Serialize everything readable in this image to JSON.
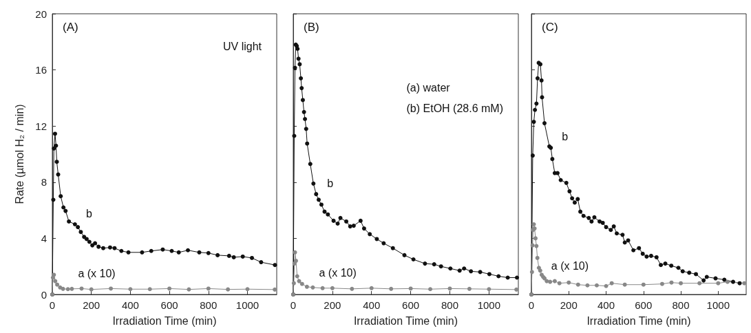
{
  "chart_data": [
    {
      "type": "line",
      "title": "(A)",
      "xlabel": "Irradiation Time (min)",
      "ylabel": "Rate (µmol H₂ / min)",
      "xlim": [
        0,
        1150
      ],
      "ylim": [
        0,
        20
      ],
      "xticks": [
        0,
        200,
        400,
        600,
        800,
        1000
      ],
      "yticks": [
        0,
        4,
        8,
        12,
        16,
        20
      ],
      "grid": false,
      "marker": "circle",
      "line_style": "solid",
      "annotations": [
        "UV light",
        "b",
        "a (x 10)"
      ],
      "series": [
        {
          "color": "#111111",
          "x": [
            0,
            5,
            8,
            14,
            19,
            23,
            30,
            43,
            57,
            68,
            85,
            116,
            131,
            146,
            163,
            176,
            190,
            205,
            219,
            237,
            261,
            296,
            319,
            354,
            390,
            460,
            507,
            566,
            612,
            648,
            695,
            753,
            800,
            847,
            906,
            930,
            976,
            1023,
            1070,
            1141
          ],
          "values": [
            0,
            6.75,
            10.4,
            11.45,
            10.6,
            9.45,
            8.55,
            7.0,
            6.2,
            5.95,
            5.2,
            5.0,
            4.8,
            4.45,
            4.1,
            3.95,
            3.75,
            3.5,
            3.65,
            3.4,
            3.3,
            3.35,
            3.3,
            3.1,
            3.0,
            3.0,
            3.1,
            3.2,
            3.1,
            3.0,
            3.15,
            3.0,
            2.95,
            2.8,
            2.75,
            2.65,
            2.7,
            2.6,
            2.3,
            2.1
          ]
        },
        {
          "color": "#888888",
          "x": [
            0,
            3,
            8,
            15,
            25,
            40,
            55,
            80,
            100,
            150,
            200,
            300,
            400,
            500,
            600,
            700,
            800,
            900,
            1000,
            1140
          ],
          "values": [
            0,
            1.2,
            1.4,
            0.95,
            0.7,
            0.5,
            0.4,
            0.38,
            0.4,
            0.42,
            0.36,
            0.42,
            0.38,
            0.38,
            0.42,
            0.36,
            0.42,
            0.36,
            0.38,
            0.35
          ]
        }
      ]
    },
    {
      "type": "line",
      "title": "(B)",
      "xlabel": "Irradiation Time (min)",
      "xlim": [
        0,
        1150
      ],
      "ylim": [
        0,
        20
      ],
      "xticks": [
        0,
        200,
        400,
        600,
        800,
        1000
      ],
      "yticks": [
        0,
        4,
        8,
        12,
        16,
        20
      ],
      "tick_labels": "x",
      "grid": false,
      "marker": "circle",
      "line_style": "solid",
      "annotations": [
        "(a) water",
        "(b) EtOH (28.6 mM)",
        "b",
        "a (x 10)"
      ],
      "series": [
        {
          "color": "#111111",
          "x": [
            0,
            5,
            9,
            13,
            18,
            22,
            27,
            33,
            39,
            43,
            49,
            55,
            60,
            66,
            71,
            87,
            103,
            117,
            130,
            144,
            160,
            177,
            206,
            227,
            241,
            271,
            291,
            309,
            344,
            362,
            391,
            427,
            462,
            509,
            568,
            614,
            673,
            720,
            755,
            803,
            850,
            873,
            908,
            955,
            1002,
            1049,
            1096,
            1143
          ],
          "values": [
            0,
            11.3,
            16.15,
            17.8,
            17.7,
            17.5,
            16.8,
            16.4,
            15.4,
            14.7,
            13.85,
            13.0,
            12.5,
            11.8,
            10.75,
            9.3,
            7.9,
            7.15,
            6.75,
            6.4,
            5.9,
            5.7,
            5.25,
            5.05,
            5.45,
            5.2,
            4.85,
            4.9,
            5.25,
            4.7,
            4.3,
            3.95,
            3.65,
            3.3,
            2.8,
            2.5,
            2.2,
            2.15,
            2.0,
            1.85,
            1.7,
            1.85,
            1.65,
            1.6,
            1.45,
            1.3,
            1.2,
            1.2
          ]
        },
        {
          "color": "#888888",
          "x": [
            0,
            3,
            6,
            9,
            14,
            20,
            30,
            45,
            70,
            100,
            150,
            200,
            300,
            400,
            500,
            600,
            700,
            800,
            900,
            1000,
            1140
          ],
          "values": [
            0,
            0.8,
            2.2,
            3.0,
            2.4,
            1.3,
            0.95,
            0.75,
            0.55,
            0.5,
            0.45,
            0.45,
            0.4,
            0.45,
            0.4,
            0.42,
            0.38,
            0.42,
            0.4,
            0.38,
            0.35
          ]
        }
      ]
    },
    {
      "type": "line",
      "title": "(C)",
      "xlabel": "Irradiation Time (min)",
      "xlim": [
        0,
        1150
      ],
      "ylim": [
        0,
        20
      ],
      "xticks": [
        0,
        200,
        400,
        600,
        800,
        1000
      ],
      "yticks": [
        0,
        4,
        8,
        12,
        16,
        20
      ],
      "tick_labels": "x",
      "grid": false,
      "marker": "circle",
      "line_style": "solid",
      "annotations": [
        "b",
        "a (x 10)"
      ],
      "series": [
        {
          "color": "#111111",
          "x": [
            0,
            7,
            13,
            19,
            27,
            33,
            39,
            48,
            54,
            57,
            70,
            96,
            104,
            112,
            125,
            140,
            157,
            187,
            204,
            218,
            232,
            248,
            262,
            279,
            307,
            322,
            337,
            365,
            382,
            400,
            425,
            441,
            457,
            488,
            500,
            518,
            546,
            576,
            596,
            617,
            641,
            670,
            693,
            717,
            749,
            787,
            810,
            845,
            881,
            922,
            939,
            986,
            1033,
            1080,
            1115
          ],
          "values": [
            0,
            9.9,
            12.3,
            13.15,
            13.6,
            15.4,
            16.5,
            16.4,
            15.25,
            14.05,
            12.2,
            10.55,
            10.45,
            9.65,
            8.65,
            8.65,
            8.15,
            7.95,
            7.35,
            6.85,
            6.55,
            6.8,
            5.9,
            5.6,
            5.45,
            5.2,
            5.5,
            5.2,
            5.1,
            4.8,
            4.6,
            4.85,
            4.35,
            4.25,
            3.7,
            3.85,
            3.15,
            3.3,
            2.9,
            2.7,
            2.75,
            2.65,
            2.1,
            2.2,
            2.05,
            1.9,
            1.65,
            1.55,
            1.45,
            1.0,
            1.25,
            1.15,
            1.05,
            0.9,
            0.8
          ]
        },
        {
          "color": "#888888",
          "x": [
            0,
            3,
            6,
            9,
            13,
            17,
            22,
            27,
            32,
            40,
            47,
            55,
            63,
            70,
            82,
            100,
            125,
            150,
            200,
            250,
            300,
            350,
            400,
            430,
            500,
            600,
            700,
            750,
            800,
            900,
            1000,
            1050,
            1140
          ],
          "values": [
            0,
            1.6,
            3.5,
            4.6,
            5.0,
            4.7,
            4.0,
            3.45,
            2.6,
            1.9,
            1.7,
            1.4,
            1.25,
            1.15,
            0.95,
            0.9,
            0.95,
            0.8,
            0.85,
            0.7,
            0.65,
            0.65,
            0.6,
            0.8,
            0.7,
            0.7,
            0.75,
            0.85,
            0.8,
            0.8,
            0.8,
            0.9,
            0.8
          ]
        }
      ]
    }
  ]
}
